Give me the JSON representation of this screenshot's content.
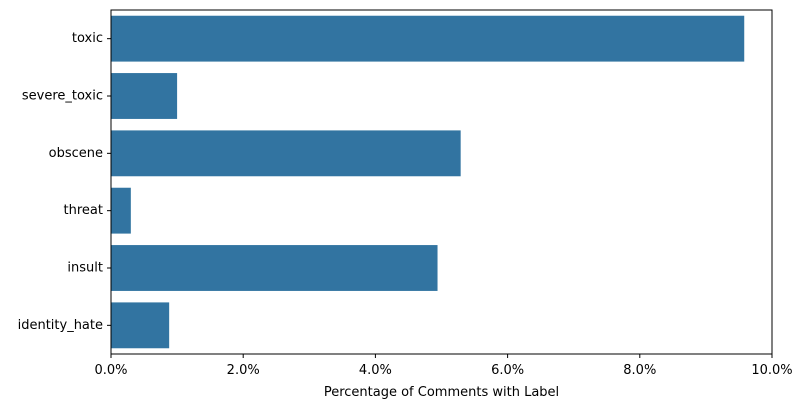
{
  "chart_data": {
    "type": "bar",
    "orientation": "horizontal",
    "categories": [
      "toxic",
      "severe_toxic",
      "obscene",
      "threat",
      "insult",
      "identity_hate"
    ],
    "values": [
      9.58,
      1.0,
      5.29,
      0.3,
      4.94,
      0.88
    ],
    "value_unit": "%",
    "xlabel": "Percentage of Comments with Label",
    "ylabel": "",
    "xlim": [
      0,
      10.0
    ],
    "xticks": [
      0,
      2,
      4,
      6,
      8,
      10
    ],
    "xtick_labels": [
      "0.0%",
      "2.0%",
      "4.0%",
      "6.0%",
      "8.0%",
      "10.0%"
    ],
    "grid": false,
    "legend": "none",
    "bar_color": "#3274a1"
  }
}
